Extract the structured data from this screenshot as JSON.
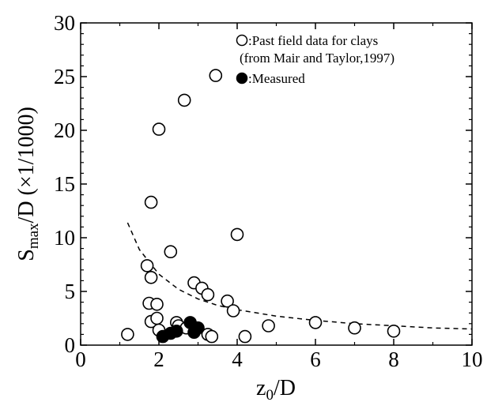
{
  "chart_data": {
    "type": "scatter",
    "xlabel": {
      "main": "z",
      "sub": "0",
      "tail": "/D"
    },
    "ylabel": {
      "main": "S",
      "sub": "max",
      "tail": "/D (×1/1000)"
    },
    "xlim": [
      0,
      10
    ],
    "ylim": [
      0,
      30
    ],
    "xticks": [
      0,
      2,
      4,
      6,
      8,
      10
    ],
    "yticks": [
      0,
      5,
      10,
      15,
      20,
      25,
      30
    ],
    "grid": false,
    "legend_position": "top-right",
    "legend": [
      {
        "symbol": "open-circle",
        "lines": [
          ":Past field data for clays",
          "(from Mair and Taylor,1997)"
        ]
      },
      {
        "symbol": "filled-circle",
        "lines": [
          ":Measured"
        ]
      }
    ],
    "series": [
      {
        "name": "Past field data for clays (from Mair and Taylor,1997)",
        "marker": "open-circle",
        "points": [
          [
            1.2,
            1.0
          ],
          [
            1.7,
            7.4
          ],
          [
            1.75,
            3.9
          ],
          [
            1.8,
            13.3
          ],
          [
            1.8,
            6.3
          ],
          [
            1.8,
            2.2
          ],
          [
            1.95,
            3.8
          ],
          [
            1.95,
            2.5
          ],
          [
            2.0,
            1.4
          ],
          [
            2.0,
            20.1
          ],
          [
            2.3,
            8.7
          ],
          [
            2.45,
            2.1
          ],
          [
            2.5,
            1.8
          ],
          [
            2.65,
            22.8
          ],
          [
            2.7,
            1.6
          ],
          [
            2.9,
            5.8
          ],
          [
            3.1,
            5.3
          ],
          [
            3.25,
            4.7
          ],
          [
            3.25,
            1.0
          ],
          [
            3.35,
            0.8
          ],
          [
            3.45,
            25.1
          ],
          [
            3.75,
            4.1
          ],
          [
            3.9,
            3.2
          ],
          [
            4.0,
            10.3
          ],
          [
            4.2,
            0.8
          ],
          [
            4.8,
            1.8
          ],
          [
            6.0,
            2.1
          ],
          [
            7.0,
            1.6
          ],
          [
            8.0,
            1.3
          ]
        ]
      },
      {
        "name": "Measured",
        "marker": "filled-circle",
        "points": [
          [
            2.1,
            0.8
          ],
          [
            2.3,
            1.1
          ],
          [
            2.45,
            1.3
          ],
          [
            2.8,
            2.1
          ],
          [
            2.9,
            1.2
          ],
          [
            3.0,
            1.6
          ]
        ]
      },
      {
        "name": "",
        "marker": "dashed-line",
        "points": [
          [
            1.2,
            11.4
          ],
          [
            1.5,
            8.9
          ],
          [
            2.0,
            6.6
          ],
          [
            2.5,
            5.2
          ],
          [
            3.0,
            4.3
          ],
          [
            3.5,
            3.7
          ],
          [
            4.0,
            3.3
          ],
          [
            5.0,
            2.7
          ],
          [
            6.0,
            2.3
          ],
          [
            7.0,
            2.0
          ],
          [
            8.0,
            1.8
          ],
          [
            9.0,
            1.6
          ],
          [
            10.0,
            1.5
          ]
        ]
      }
    ]
  }
}
